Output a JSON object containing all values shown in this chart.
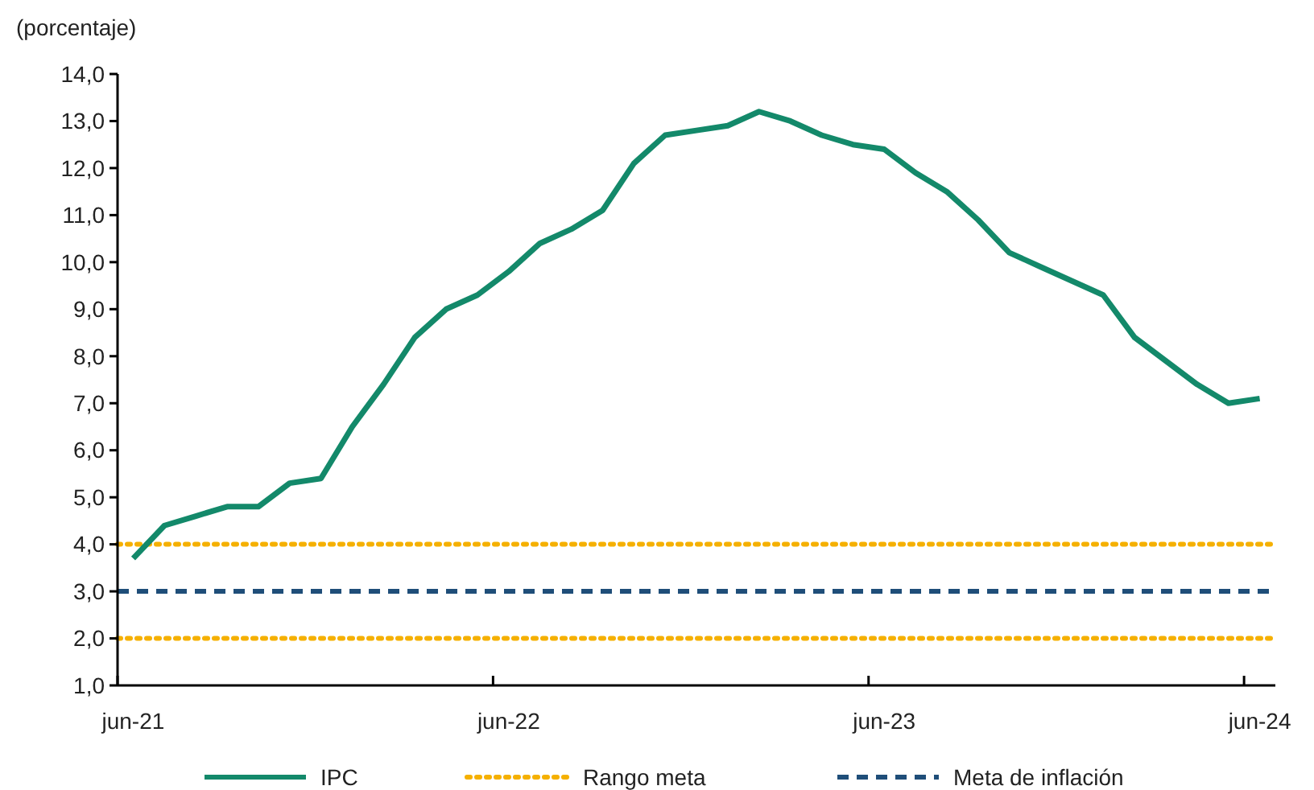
{
  "chart_data": {
    "type": "line",
    "ylabel": "(porcentaje)",
    "categories": [
      "jun-21",
      null,
      null,
      null,
      null,
      null,
      null,
      null,
      null,
      null,
      null,
      null,
      "jun-22",
      null,
      null,
      null,
      null,
      null,
      null,
      null,
      null,
      null,
      null,
      null,
      "jun-23",
      null,
      null,
      null,
      null,
      null,
      null,
      null,
      null,
      null,
      null,
      null,
      "jun-24"
    ],
    "series": [
      {
        "name": "IPC",
        "color": "#13896a",
        "values": [
          3.7,
          4.4,
          4.6,
          4.8,
          4.8,
          5.3,
          5.4,
          6.5,
          7.4,
          8.4,
          9.0,
          9.3,
          9.8,
          10.4,
          10.7,
          11.1,
          12.1,
          12.7,
          12.8,
          12.9,
          13.2,
          13.0,
          12.7,
          12.5,
          12.4,
          11.9,
          11.5,
          10.9,
          10.2,
          9.9,
          9.6,
          9.3,
          8.4,
          7.9,
          7.4,
          7.0,
          7.1
        ]
      }
    ],
    "ylim": [
      1,
      14
    ],
    "yticks": [
      {
        "value": 1,
        "label": "1,0"
      },
      {
        "value": 2,
        "label": "2,0"
      },
      {
        "value": 3,
        "label": "3,0"
      },
      {
        "value": 4,
        "label": "4,0"
      },
      {
        "value": 5,
        "label": "5,0"
      },
      {
        "value": 6,
        "label": "6,0"
      },
      {
        "value": 7,
        "label": "7,0"
      },
      {
        "value": 8,
        "label": "8,0"
      },
      {
        "value": 9,
        "label": "9,0"
      },
      {
        "value": 10,
        "label": "10,0"
      },
      {
        "value": 11,
        "label": "11,0"
      },
      {
        "value": 12,
        "label": "12,0"
      },
      {
        "value": 13,
        "label": "13,0"
      },
      {
        "value": 14,
        "label": "14,0"
      }
    ],
    "ref_lines": [
      {
        "axis": "y",
        "value": 4,
        "label": "Rango meta",
        "color": "#f5b000",
        "line_style": "dotted"
      },
      {
        "axis": "y",
        "value": 3,
        "label": "Meta de inflación",
        "color": "#1f4e79",
        "line_style": "dashed"
      },
      {
        "axis": "y",
        "value": 2,
        "color": "#f5b000",
        "line_style": "dotted"
      }
    ],
    "grid": false,
    "legend": "bottom",
    "marker": "none",
    "line_style": "solid"
  }
}
